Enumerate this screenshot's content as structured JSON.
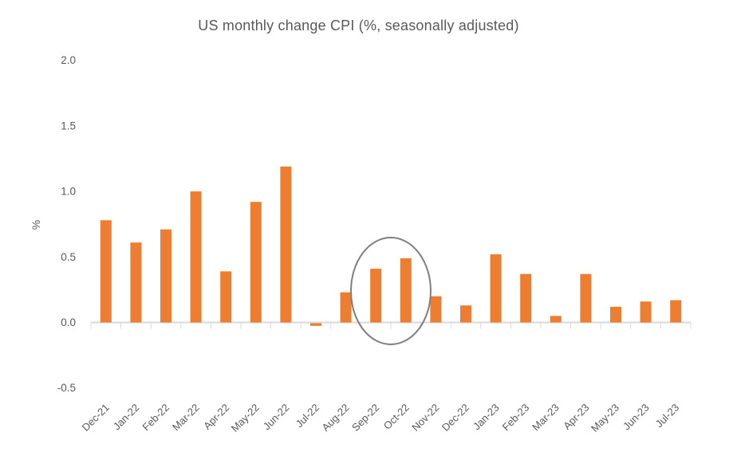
{
  "chart_data": {
    "type": "bar",
    "title": "US monthly change CPI (%, seasonally adjusted)",
    "xlabel": "",
    "ylabel": "%",
    "categories": [
      "Dec-21",
      "Jan-22",
      "Feb-22",
      "Mar-22",
      "Apr-22",
      "May-22",
      "Jun-22",
      "Jul-22",
      "Aug-22",
      "Sep-22",
      "Oct-22",
      "Nov-22",
      "Dec-22",
      "Jan-23",
      "Feb-23",
      "Mar-23",
      "Apr-23",
      "May-23",
      "Jun-23",
      "Jul-23"
    ],
    "values": [
      0.78,
      0.61,
      0.71,
      1.0,
      0.39,
      0.92,
      1.19,
      -0.02,
      0.23,
      0.41,
      0.49,
      0.2,
      0.13,
      0.52,
      0.37,
      0.05,
      0.37,
      0.12,
      0.16,
      0.17
    ],
    "y_tick_labels": [
      "2.0",
      "1.5",
      "1.0",
      "0.5",
      "0.0",
      "-0.5"
    ],
    "ylim": [
      -0.5,
      2.0
    ],
    "grid": false,
    "legend": "none",
    "bar_color": "#ED7D31",
    "axis_color": "#D9D9D9",
    "text_color": "#595959",
    "annotation": {
      "shape": "ellipse",
      "around_categories": [
        "Sep-22",
        "Oct-22"
      ],
      "color": "#7F7F7F"
    }
  }
}
